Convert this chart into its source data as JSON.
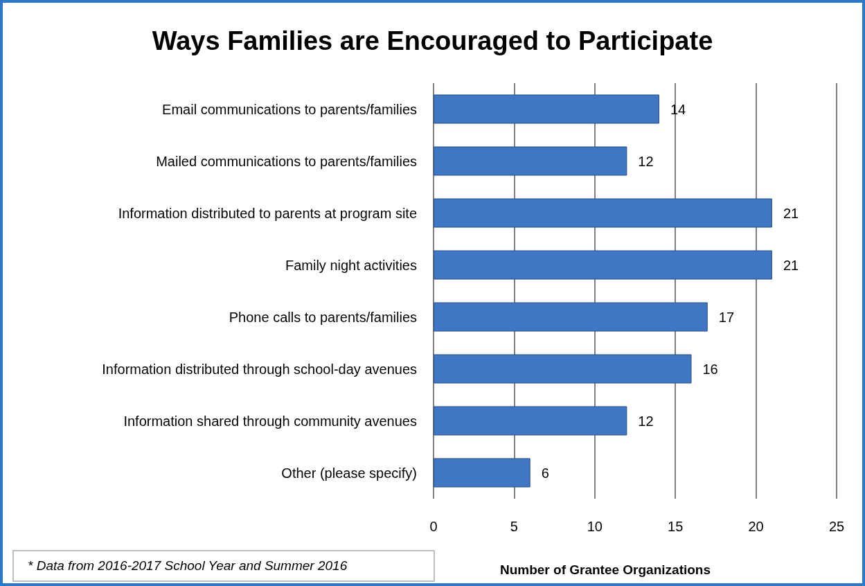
{
  "chart_data": {
    "type": "bar",
    "orientation": "horizontal",
    "title": "Ways Families are Encouraged to Participate",
    "xlabel": "Number of Grantee Organizations",
    "categories": [
      "Email communications to parents/families",
      "Mailed communications to parents/families",
      "Information distributed to parents at program site",
      "Family night activities",
      "Phone calls to parents/families",
      "Information distributed through school-day avenues",
      "Information shared through community avenues",
      "Other (please specify)"
    ],
    "values": [
      14,
      12,
      21,
      21,
      17,
      16,
      12,
      6
    ],
    "color": "#3f77c4",
    "xlim": [
      0,
      25
    ],
    "xticks": [
      0,
      5,
      10,
      15,
      20,
      25
    ],
    "grid": "x",
    "data_labels": true,
    "annotations": [
      "* Data from 2016-2017 School Year and Summer 2016"
    ]
  }
}
